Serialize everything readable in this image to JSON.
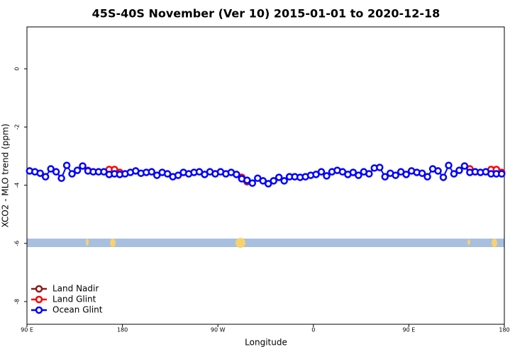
{
  "chart_data": {
    "type": "line",
    "title": "45S-40S November (Ver 10)   2015-01-01 to 2020-12-18",
    "x_label": "Longitude",
    "y_label": "XCO2 - MLO trend (ppm)",
    "xlim": [
      90,
      540
    ],
    "xticks": [
      {
        "value": 90,
        "label": "90 E"
      },
      180,
      {
        "value": 270,
        "label": "90 W"
      },
      {
        "value": 360,
        "label": "0"
      },
      {
        "value": 450,
        "label": "90 E"
      },
      {
        "value": 540,
        "label": "180"
      }
    ],
    "ylim": [
      -8.78,
      1.44
    ],
    "yticks": [
      0,
      -2,
      -4,
      -6,
      -8
    ],
    "legend": "bottom-left",
    "series": [
      {
        "name": "Land Nadir",
        "color": "#8b1a1a",
        "x": [
          297.5
        ],
        "values": [
          -3.88
        ]
      },
      {
        "name": "Land Glint",
        "color": "#ff0000",
        "x": [
          147.5,
          167.5,
          172.5,
          177.5,
          292.5,
          297.5,
          507.5,
          512.5,
          527.5,
          532.5,
          537.5
        ],
        "values": [
          -3.49,
          -3.46,
          -3.46,
          -3.56,
          -3.73,
          -3.85,
          -3.44,
          -3.54,
          -3.46,
          -3.46,
          -3.56
        ]
      },
      {
        "name": "Ocean Glint",
        "color": "#0000ff",
        "x": [
          92.5,
          97.5,
          102.5,
          107.5,
          112.5,
          117.5,
          122.5,
          127.5,
          132.5,
          137.5,
          142.5,
          147.5,
          152.5,
          157.5,
          162.5,
          167.5,
          172.5,
          177.5,
          182.5,
          187.5,
          192.5,
          197.5,
          202.5,
          207.5,
          212.5,
          217.5,
          222.5,
          227.5,
          232.5,
          237.5,
          242.5,
          247.5,
          252.5,
          257.5,
          262.5,
          267.5,
          272.5,
          277.5,
          282.5,
          287.5,
          292.5,
          297.5,
          302.5,
          307.5,
          312.5,
          317.5,
          322.5,
          327.5,
          332.5,
          337.5,
          342.5,
          347.5,
          352.5,
          357.5,
          362.5,
          367.5,
          372.5,
          377.5,
          382.5,
          387.5,
          392.5,
          397.5,
          402.5,
          407.5,
          412.5,
          417.5,
          422.5,
          427.5,
          432.5,
          437.5,
          442.5,
          447.5,
          452.5,
          457.5,
          462.5,
          467.5,
          472.5,
          477.5,
          482.5,
          487.5,
          492.5,
          497.5,
          502.5,
          507.5,
          512.5,
          517.5,
          522.5,
          527.5,
          532.5,
          537.5
        ],
        "values": [
          -3.51,
          -3.54,
          -3.59,
          -3.71,
          -3.44,
          -3.54,
          -3.76,
          -3.32,
          -3.61,
          -3.49,
          -3.34,
          -3.51,
          -3.54,
          -3.54,
          -3.54,
          -3.63,
          -3.61,
          -3.63,
          -3.61,
          -3.56,
          -3.51,
          -3.59,
          -3.56,
          -3.54,
          -3.66,
          -3.56,
          -3.61,
          -3.71,
          -3.66,
          -3.56,
          -3.61,
          -3.56,
          -3.54,
          -3.63,
          -3.54,
          -3.61,
          -3.54,
          -3.61,
          -3.56,
          -3.63,
          -3.78,
          -3.83,
          -3.93,
          -3.76,
          -3.85,
          -3.95,
          -3.85,
          -3.73,
          -3.85,
          -3.71,
          -3.71,
          -3.73,
          -3.71,
          -3.66,
          -3.63,
          -3.54,
          -3.68,
          -3.54,
          -3.49,
          -3.54,
          -3.63,
          -3.56,
          -3.66,
          -3.54,
          -3.61,
          -3.41,
          -3.39,
          -3.71,
          -3.59,
          -3.66,
          -3.54,
          -3.63,
          -3.51,
          -3.56,
          -3.59,
          -3.71,
          -3.44,
          -3.51,
          -3.73,
          -3.32,
          -3.61,
          -3.49,
          -3.34,
          -3.56,
          -3.54,
          -3.56,
          -3.54,
          -3.61,
          -3.61,
          -3.61
        ]
      }
    ]
  }
}
